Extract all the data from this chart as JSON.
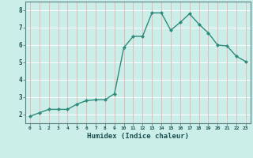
{
  "x": [
    0,
    1,
    2,
    3,
    4,
    5,
    6,
    7,
    8,
    9,
    10,
    11,
    12,
    13,
    14,
    15,
    16,
    17,
    18,
    19,
    20,
    21,
    22,
    23
  ],
  "y": [
    1.9,
    2.1,
    2.3,
    2.3,
    2.3,
    2.6,
    2.8,
    2.85,
    2.85,
    3.2,
    5.85,
    6.5,
    6.5,
    7.85,
    7.85,
    6.85,
    7.3,
    7.8,
    7.2,
    6.7,
    6.0,
    5.95,
    5.35,
    5.05
  ],
  "line_color": "#2e8b7a",
  "marker": "D",
  "marker_size": 2.0,
  "bg_color": "#cceee9",
  "grid_h_color": "#ffffff",
  "grid_v_color": "#e8b8b8",
  "xlabel": "Humidex (Indice chaleur)",
  "xlabel_color": "#1a5050",
  "tick_color": "#1a5050",
  "axis_color": "#5a8080",
  "ylim": [
    1.5,
    8.5
  ],
  "xlim": [
    -0.5,
    23.5
  ],
  "yticks": [
    2,
    3,
    4,
    5,
    6,
    7,
    8
  ],
  "xticks": [
    0,
    1,
    2,
    3,
    4,
    5,
    6,
    7,
    8,
    9,
    10,
    11,
    12,
    13,
    14,
    15,
    16,
    17,
    18,
    19,
    20,
    21,
    22,
    23
  ]
}
